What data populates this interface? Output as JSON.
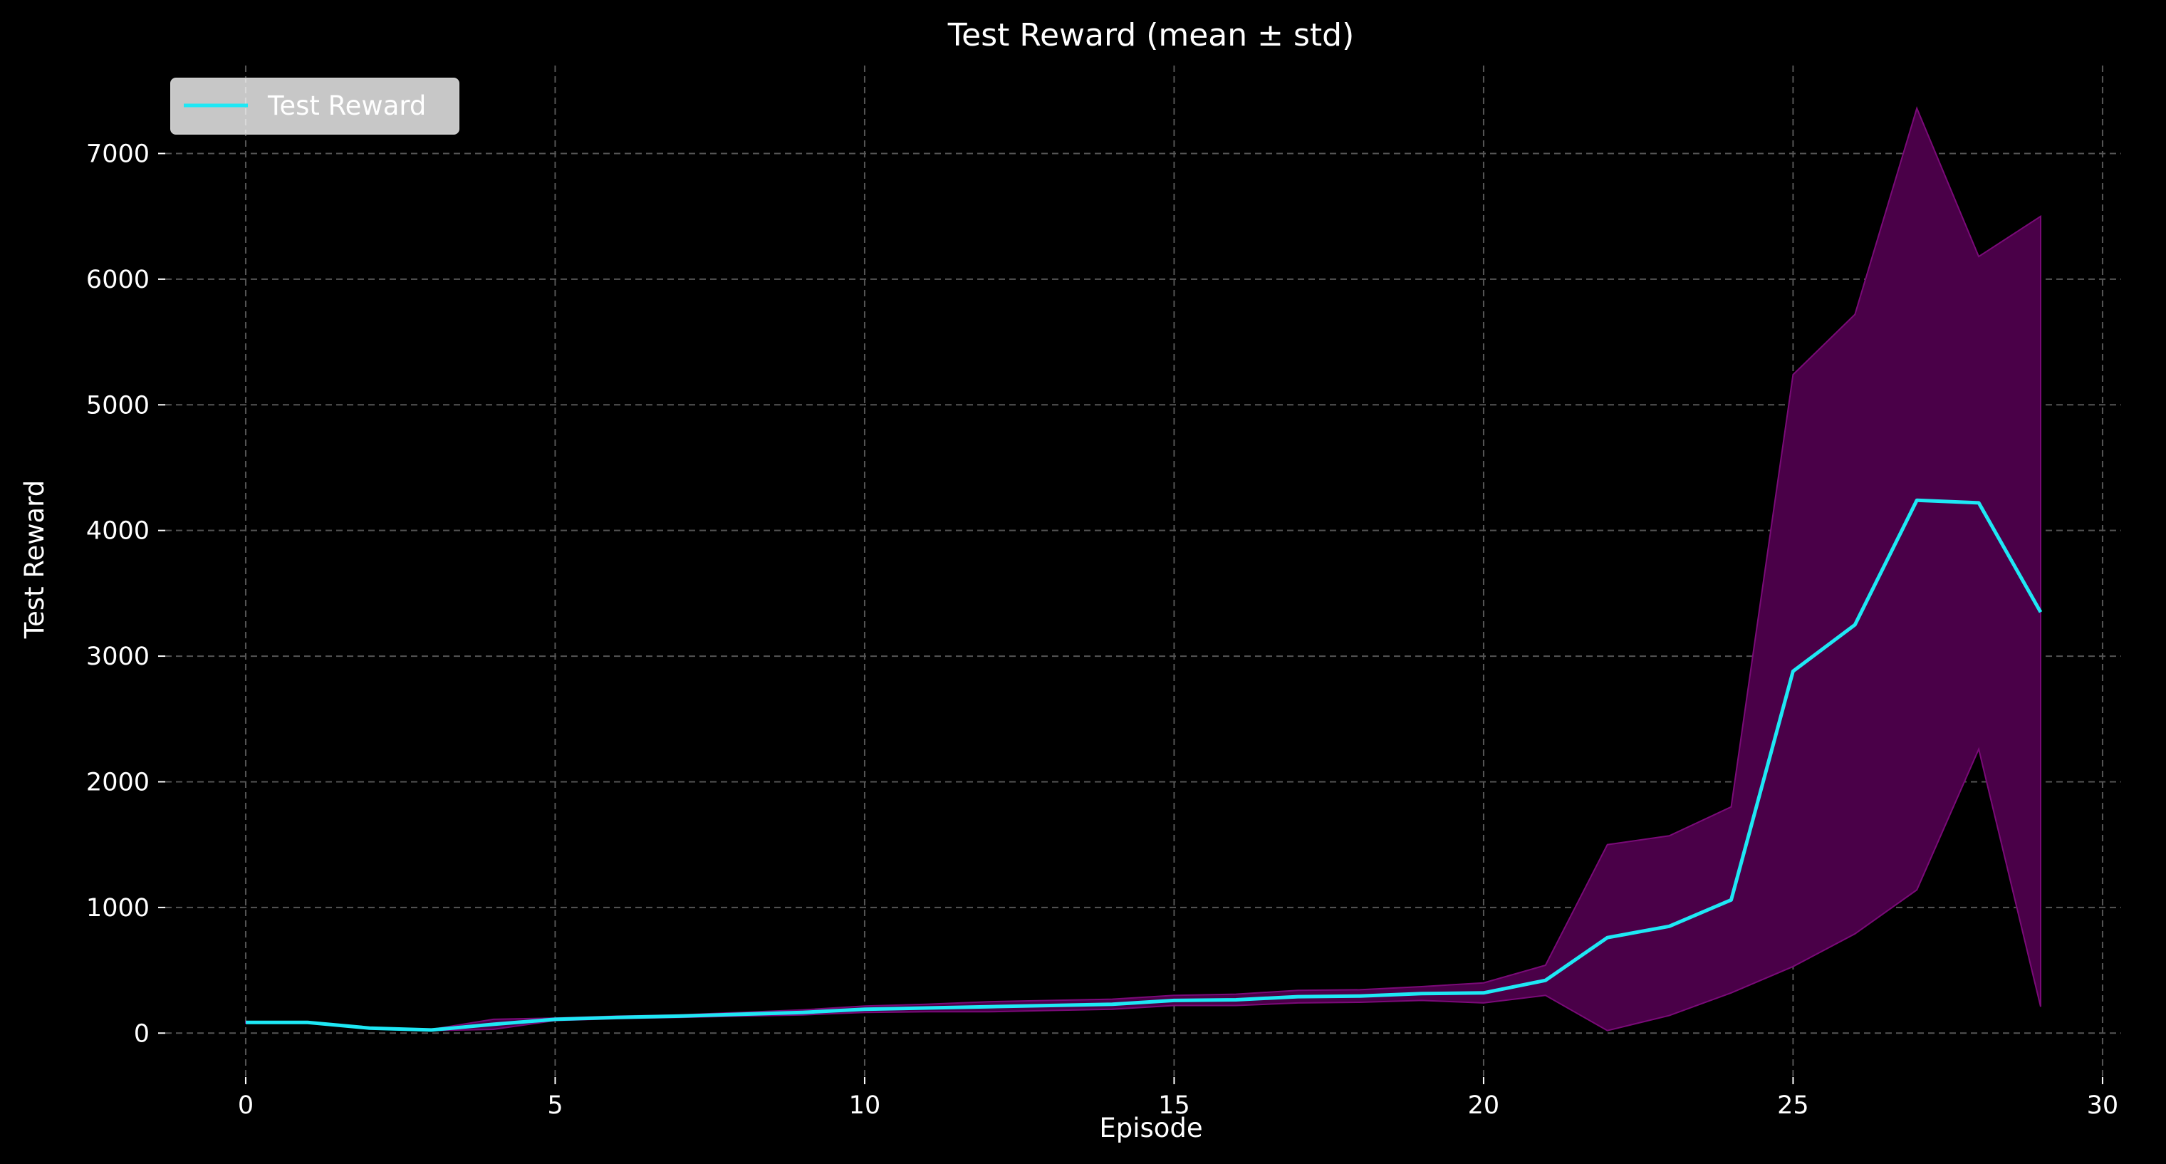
{
  "chart_data": {
    "type": "line",
    "title": "Test Reward (mean ± std)",
    "xlabel": "Episode",
    "ylabel": "Test Reward",
    "xlim": [
      -1.3,
      30.3
    ],
    "ylim": [
      -350,
      7700
    ],
    "xticks": [
      0,
      5,
      10,
      15,
      20,
      25,
      30
    ],
    "yticks": [
      0,
      1000,
      2000,
      3000,
      4000,
      5000,
      6000,
      7000
    ],
    "grid": true,
    "legend_position": "top-left",
    "series": [
      {
        "name": "Test Reward",
        "color": "#1ee8f5",
        "band_color": "#4a0048",
        "band_edge_color": "#7a0a78",
        "x": [
          0,
          1,
          2,
          3,
          4,
          5,
          6,
          7,
          8,
          9,
          10,
          11,
          12,
          13,
          14,
          15,
          16,
          17,
          18,
          19,
          20,
          21,
          22,
          23,
          24,
          25,
          26,
          27,
          28,
          29
        ],
        "mean": [
          85,
          85,
          40,
          25,
          70,
          110,
          125,
          135,
          150,
          165,
          190,
          200,
          210,
          220,
          230,
          260,
          265,
          290,
          295,
          315,
          320,
          420,
          760,
          850,
          1060,
          2880,
          3250,
          4240,
          4220,
          3350
        ],
        "upper": [
          90,
          90,
          45,
          30,
          110,
          120,
          135,
          145,
          165,
          185,
          215,
          230,
          250,
          260,
          270,
          300,
          310,
          340,
          345,
          370,
          400,
          540,
          1500,
          1570,
          1800,
          5240,
          5720,
          7360,
          6180,
          6500
        ],
        "lower": [
          80,
          80,
          35,
          20,
          30,
          100,
          115,
          125,
          135,
          145,
          165,
          170,
          170,
          180,
          190,
          220,
          220,
          240,
          245,
          260,
          240,
          300,
          20,
          140,
          320,
          530,
          790,
          1140,
          2260,
          210
        ]
      }
    ]
  }
}
